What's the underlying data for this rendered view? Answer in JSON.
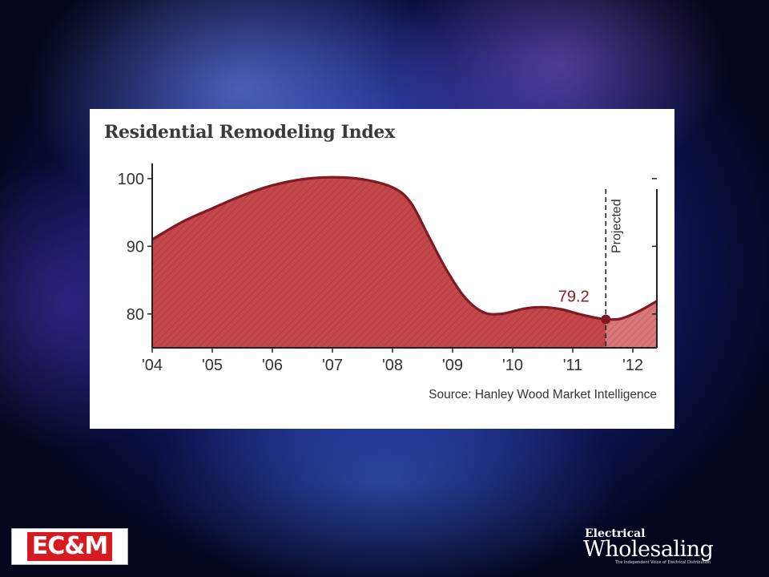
{
  "chart_data": {
    "type": "area",
    "title": "Residential Remodeling Index",
    "source": "Source: Hanley Wood Market Intelligence",
    "x_ticks": [
      "'04",
      "'05",
      "'06",
      "'07",
      "'08",
      "'09",
      "'10",
      "'11",
      "'12"
    ],
    "y_ticks": [
      80,
      90,
      100
    ],
    "ylim": [
      75,
      102
    ],
    "xlim": [
      2004,
      2012.4
    ],
    "series": [
      {
        "points": [
          [
            2004.0,
            91.0
          ],
          [
            2004.5,
            93.6
          ],
          [
            2005.0,
            95.6
          ],
          [
            2005.5,
            97.5
          ],
          [
            2006.0,
            99.0
          ],
          [
            2006.5,
            99.9
          ],
          [
            2007.0,
            100.2
          ],
          [
            2007.5,
            99.9
          ],
          [
            2008.0,
            98.7
          ],
          [
            2008.3,
            96.5
          ],
          [
            2008.6,
            91.5
          ],
          [
            2008.9,
            86.5
          ],
          [
            2009.2,
            82.5
          ],
          [
            2009.5,
            80.3
          ],
          [
            2009.8,
            80.0
          ],
          [
            2010.2,
            80.8
          ],
          [
            2010.5,
            81.0
          ],
          [
            2010.8,
            80.7
          ],
          [
            2011.1,
            80.0
          ],
          [
            2011.4,
            79.4
          ],
          [
            2011.55,
            79.2
          ]
        ]
      },
      {
        "name": "Projected",
        "points": [
          [
            2011.55,
            79.2
          ],
          [
            2011.8,
            79.3
          ],
          [
            2012.1,
            80.4
          ],
          [
            2012.4,
            81.9
          ]
        ]
      }
    ],
    "annotations": {
      "projected_label": "Projected",
      "point_label": "79.2",
      "point": [
        2011.55,
        79.2
      ]
    },
    "colors": {
      "fill": "#c4474c",
      "projected_fill": "#d9777b",
      "line": "#7e1a22",
      "hatch": "#8e2a30"
    }
  },
  "logos": {
    "left_text": "EC&M",
    "right_line1": "Electrical",
    "right_line2": "Wholesaling",
    "right_tagline": "The Independent Voice of Electrical Distribution"
  }
}
